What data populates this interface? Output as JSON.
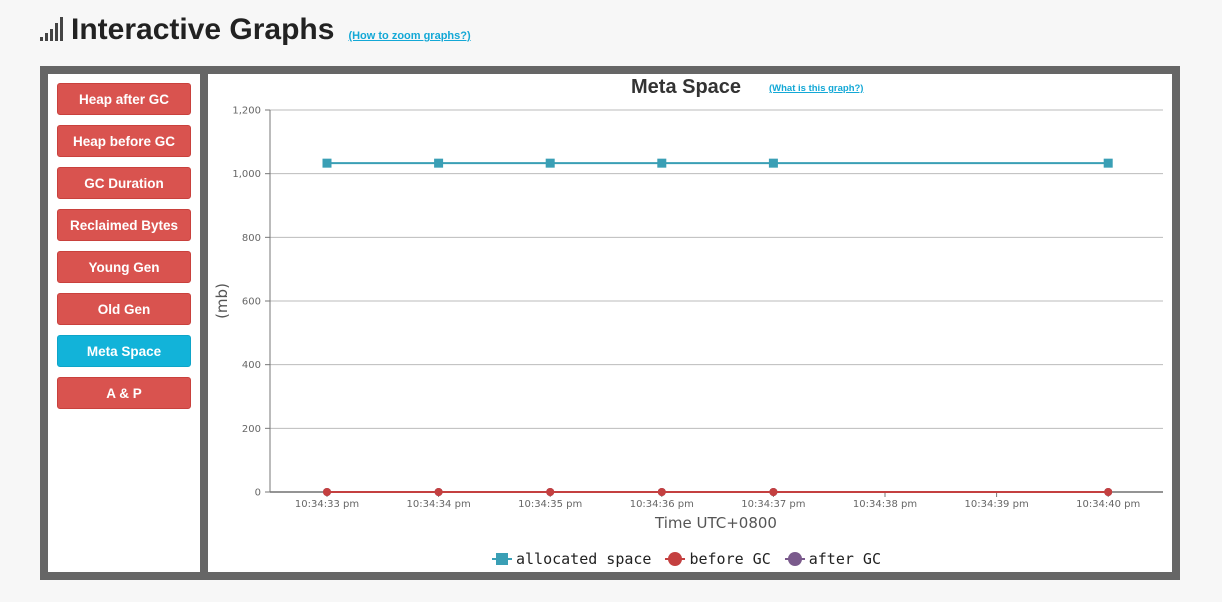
{
  "page": {
    "title": "Interactive Graphs",
    "zoom_link": "(How to zoom graphs?)"
  },
  "sidebar": {
    "items": [
      {
        "label": "Heap after GC",
        "active": false
      },
      {
        "label": "Heap before GC",
        "active": false
      },
      {
        "label": "GC Duration",
        "active": false
      },
      {
        "label": "Reclaimed Bytes",
        "active": false
      },
      {
        "label": "Young Gen",
        "active": false
      },
      {
        "label": "Old Gen",
        "active": false
      },
      {
        "label": "Meta Space",
        "active": true
      },
      {
        "label": "A & P",
        "active": false
      }
    ]
  },
  "colors": {
    "nav_button": "#d9534f",
    "nav_button_active": "#12b3d9",
    "allocated": "#3a9fb5",
    "before_gc": "#c44040",
    "after_gc": "#7a5a8c"
  },
  "chart": {
    "help_link": "(What is this graph?)"
  },
  "chart_data": {
    "type": "line",
    "title": "Meta Space",
    "xlabel": "Time UTC+0800",
    "ylabel": "(mb)",
    "ylim": [
      0,
      1200
    ],
    "yticks": [
      "0",
      "200",
      "400",
      "600",
      "800",
      "1,000",
      "1,200"
    ],
    "xticks": [
      "10:34:33 pm",
      "10:34:34 pm",
      "10:34:35 pm",
      "10:34:36 pm",
      "10:34:37 pm",
      "10:34:38 pm",
      "10:34:39 pm",
      "10:34:40 pm"
    ],
    "x": [
      "10:34:33 pm",
      "10:34:34 pm",
      "10:34:35 pm",
      "10:34:36 pm",
      "10:34:37 pm",
      "10:34:40 pm"
    ],
    "series": [
      {
        "name": "allocated space",
        "values": [
          1033,
          1033,
          1033,
          1033,
          1033,
          1033
        ],
        "marker": "square"
      },
      {
        "name": "before GC",
        "values": [
          0,
          0,
          0,
          0,
          0,
          0
        ],
        "marker": "circle"
      },
      {
        "name": "after GC",
        "values": [
          0,
          0,
          0,
          0,
          0,
          0
        ],
        "marker": "circle"
      }
    ],
    "grid": true,
    "legend": "bottom"
  }
}
